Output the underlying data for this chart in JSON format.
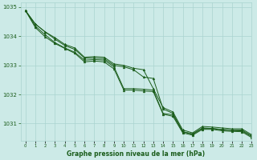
{
  "title": "Graphe pression niveau de la mer (hPa)",
  "background_color": "#cceae7",
  "grid_color": "#aad4d0",
  "line_color": "#1a5c1a",
  "xlim": [
    -0.5,
    23
  ],
  "ylim": [
    1030.4,
    1035.15
  ],
  "yticks": [
    1031,
    1032,
    1033,
    1034,
    1035
  ],
  "xtick_labels": [
    "0",
    "1",
    "2",
    "3",
    "4",
    "5",
    "6",
    "7",
    "8",
    "9",
    "10",
    "11",
    "12",
    "13",
    "14",
    "15",
    "16",
    "17",
    "18",
    "19",
    "20",
    "21",
    "22",
    "23"
  ],
  "series1": [
    1034.88,
    1034.42,
    1034.15,
    1033.95,
    1033.72,
    1033.6,
    1033.28,
    1033.3,
    1033.28,
    1033.05,
    1033.0,
    1032.9,
    1032.85,
    1032.2,
    1031.55,
    1031.4,
    1030.78,
    1030.68,
    1030.9,
    1030.88,
    1030.85,
    1030.82,
    1030.82,
    1030.62
  ],
  "series2": [
    1034.88,
    1034.42,
    1034.15,
    1033.9,
    1033.68,
    1033.55,
    1033.25,
    1033.25,
    1033.23,
    1033.0,
    1032.95,
    1032.85,
    1032.6,
    1032.55,
    1031.5,
    1031.35,
    1030.72,
    1030.65,
    1030.85,
    1030.83,
    1030.8,
    1030.78,
    1030.78,
    1030.58
  ],
  "series3": [
    1034.88,
    1034.35,
    1034.05,
    1033.78,
    1033.6,
    1033.45,
    1033.18,
    1033.2,
    1033.18,
    1032.95,
    1032.2,
    1032.2,
    1032.18,
    1032.15,
    1031.35,
    1031.3,
    1030.72,
    1030.63,
    1030.83,
    1030.83,
    1030.78,
    1030.76,
    1030.75,
    1030.56
  ],
  "series4": [
    1034.88,
    1034.3,
    1033.98,
    1033.75,
    1033.58,
    1033.42,
    1033.12,
    1033.15,
    1033.12,
    1032.88,
    1032.15,
    1032.15,
    1032.12,
    1032.1,
    1031.32,
    1031.25,
    1030.68,
    1030.6,
    1030.8,
    1030.8,
    1030.75,
    1030.73,
    1030.72,
    1030.52
  ]
}
